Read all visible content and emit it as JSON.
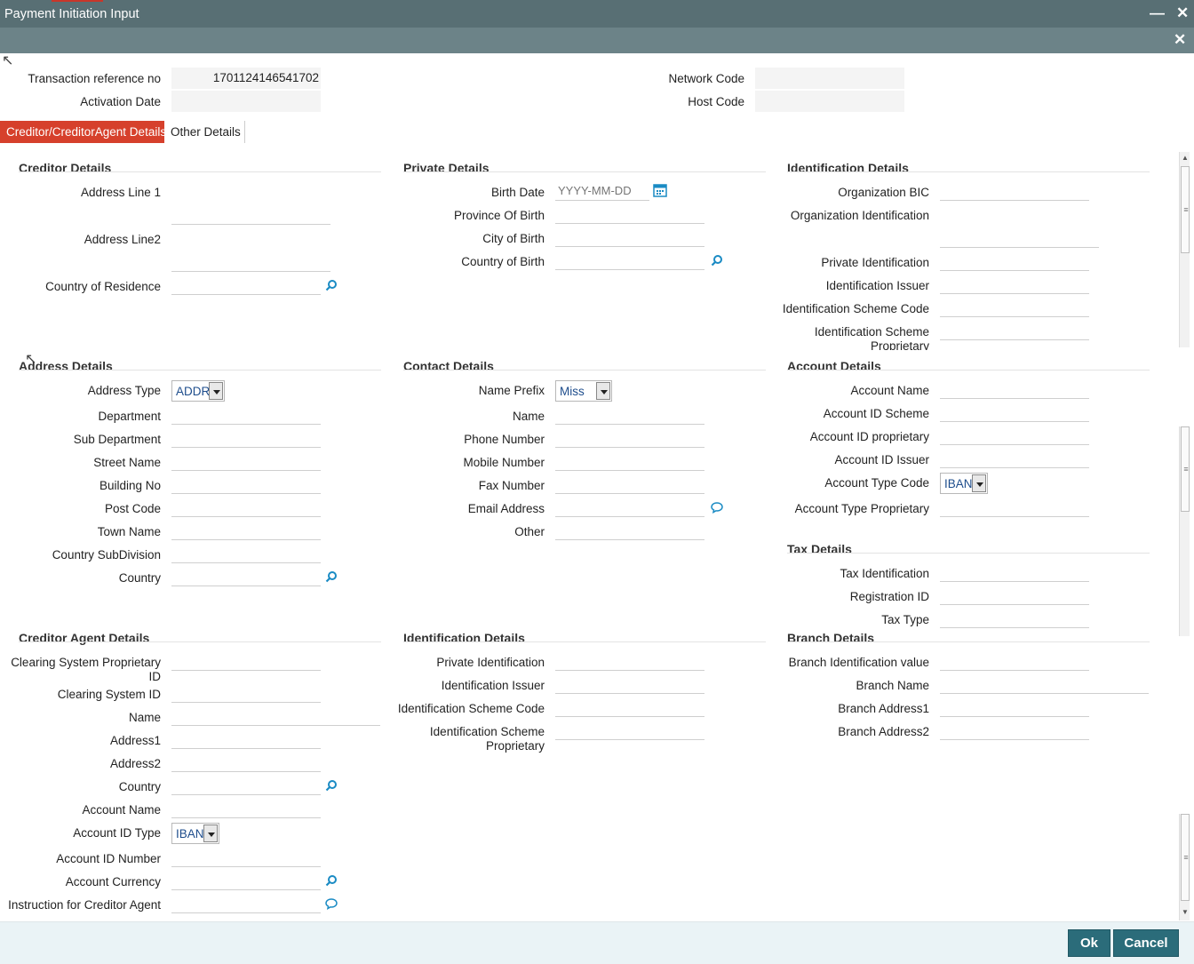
{
  "window": {
    "title": "Payment Initiation Input",
    "minimize_icon": "minimize-icon",
    "close_icon": "close-icon"
  },
  "header": {
    "txn_ref_label": "Transaction reference no",
    "txn_ref_value": "1701124146541702",
    "activation_date_label": "Activation Date",
    "activation_date_value": "",
    "network_code_label": "Network Code",
    "network_code_value": "",
    "host_code_label": "Host Code",
    "host_code_value": ""
  },
  "tabs": [
    {
      "label": "Creditor/CreditorAgent Details",
      "active": true
    },
    {
      "label": "Other Details",
      "active": false
    }
  ],
  "creditor_details": {
    "title": "Creditor Details",
    "address_line1": "Address Line 1",
    "address_line2": "Address Line2",
    "country_of_residence": "Country of Residence"
  },
  "private_details": {
    "title": "Private Details",
    "birth_date": "Birth Date",
    "birth_date_placeholder": "YYYY-MM-DD",
    "province_of_birth": "Province Of Birth",
    "city_of_birth": "City of Birth",
    "country_of_birth": "Country of Birth"
  },
  "identification_details_top": {
    "title": "Identification Details",
    "organization_bic": "Organization BIC",
    "organization_identification": "Organization Identification",
    "private_identification": "Private Identification",
    "identification_issuer": "Identification Issuer",
    "identification_scheme_code": "Identification Scheme Code",
    "identification_scheme_proprietary": "Identification Scheme Proprietary"
  },
  "address_details": {
    "title": "Address Details",
    "address_type": "Address Type",
    "address_type_value": "ADDR",
    "department": "Department",
    "sub_department": "Sub Department",
    "street_name": "Street Name",
    "building_no": "Building No",
    "post_code": "Post Code",
    "town_name": "Town Name",
    "country_subdivision": "Country SubDivision",
    "country": "Country"
  },
  "contact_details": {
    "title": "Contact Details",
    "name_prefix": "Name Prefix",
    "name_prefix_value": "Miss",
    "name": "Name",
    "phone_number": "Phone Number",
    "mobile_number": "Mobile Number",
    "fax_number": "Fax Number",
    "email_address": "Email Address",
    "other": "Other"
  },
  "account_details": {
    "title": "Account Details",
    "account_name": "Account Name",
    "account_id_scheme": "Account ID Scheme",
    "account_id_proprietary": "Account ID proprietary",
    "account_id_issuer": "Account ID Issuer",
    "account_type_code": "Account Type Code",
    "account_type_code_value": "IBAN",
    "account_type_proprietary": "Account Type Proprietary"
  },
  "tax_details": {
    "title": "Tax Details",
    "tax_identification": "Tax Identification",
    "registration_id": "Registration ID",
    "tax_type": "Tax Type"
  },
  "creditor_agent_details": {
    "title": "Creditor Agent Details",
    "clearing_system_proprietary_id": "Clearing System Proprietary ID",
    "clearing_system_id": "Clearing System ID",
    "name": "Name",
    "address1": "Address1",
    "address2": "Address2",
    "country": "Country",
    "account_name": "Account Name",
    "account_id_type": "Account ID Type",
    "account_id_type_value": "IBAN",
    "account_id_number": "Account ID Number",
    "account_currency": "Account Currency",
    "instruction_for_creditor_agent": "Instruction for Creditor Agent"
  },
  "identification_details_bottom": {
    "title": "Identification Details",
    "private_identification": "Private Identification",
    "identification_issuer": "Identification Issuer",
    "identification_scheme_code": "Identification Scheme Code",
    "identification_scheme_proprietary": "Identification Scheme Proprietary"
  },
  "branch_details": {
    "title": "Branch Details",
    "branch_identification_value": "Branch Identification value",
    "branch_name": "Branch Name",
    "branch_address1": "Branch Address1",
    "branch_address2": "Branch Address2"
  },
  "footer": {
    "ok_label": "Ok",
    "cancel_label": "Cancel"
  },
  "colors": {
    "titlebar": "#586f74",
    "active_tab": "#d6402c",
    "button": "#2b6c7a",
    "icon": "#1a8bc4"
  }
}
